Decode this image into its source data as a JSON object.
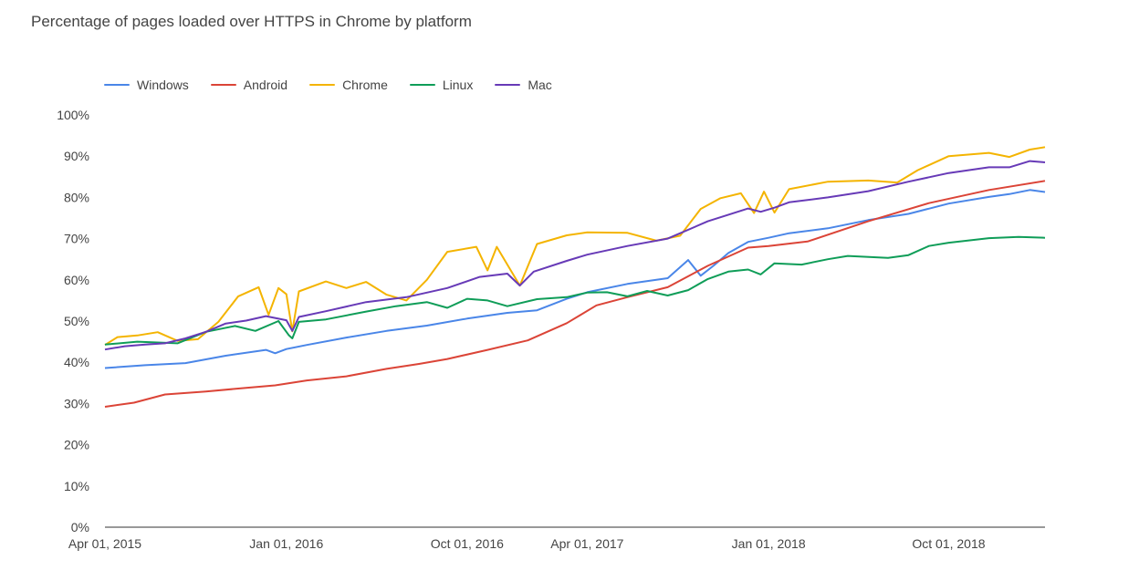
{
  "chart_data": {
    "type": "line",
    "title": "Percentage of pages loaded over HTTPS in Chrome by platform",
    "xlabel": "",
    "ylabel": "",
    "x_range": [
      "2015-04-01",
      "2019-02-24"
    ],
    "ylim": [
      0,
      100
    ],
    "y_ticks": [
      "0%",
      "10%",
      "20%",
      "30%",
      "40%",
      "50%",
      "60%",
      "70%",
      "80%",
      "90%",
      "100%"
    ],
    "y_tick_values": [
      0,
      10,
      20,
      30,
      40,
      50,
      60,
      70,
      80,
      90,
      100
    ],
    "x_ticks": [
      {
        "label": "Apr 01, 2015",
        "date": "2015-04-01"
      },
      {
        "label": "Jan 01, 2016",
        "date": "2016-01-01"
      },
      {
        "label": "Oct 01, 2016",
        "date": "2016-10-01"
      },
      {
        "label": "Apr 01, 2017",
        "date": "2017-04-01"
      },
      {
        "label": "Jan 01, 2018",
        "date": "2018-01-01"
      },
      {
        "label": "Oct 01, 2018",
        "date": "2018-10-01"
      }
    ],
    "grid": false,
    "legend_position": "top-left",
    "series": [
      {
        "name": "Windows",
        "color": "#4a86e8",
        "points": [
          [
            "2015-04-01",
            38.6
          ],
          [
            "2015-06-01",
            39.3
          ],
          [
            "2015-08-01",
            39.8
          ],
          [
            "2015-10-01",
            41.6
          ],
          [
            "2015-12-01",
            43.0
          ],
          [
            "2015-12-15",
            42.2
          ],
          [
            "2016-01-01",
            43.2
          ],
          [
            "2016-02-01",
            44.2
          ],
          [
            "2016-04-01",
            46.0
          ],
          [
            "2016-06-01",
            47.6
          ],
          [
            "2016-08-01",
            48.9
          ],
          [
            "2016-10-01",
            50.6
          ],
          [
            "2016-12-01",
            52.0
          ],
          [
            "2017-01-15",
            52.6
          ],
          [
            "2017-03-01",
            55.4
          ],
          [
            "2017-04-01",
            57.0
          ],
          [
            "2017-06-01",
            59.0
          ],
          [
            "2017-08-01",
            60.4
          ],
          [
            "2017-09-01",
            64.8
          ],
          [
            "2017-09-20",
            61.0
          ],
          [
            "2017-10-10",
            63.5
          ],
          [
            "2017-11-01",
            66.5
          ],
          [
            "2017-12-01",
            69.2
          ],
          [
            "2018-01-01",
            70.2
          ],
          [
            "2018-02-01",
            71.3
          ],
          [
            "2018-04-01",
            72.5
          ],
          [
            "2018-06-01",
            74.5
          ],
          [
            "2018-08-01",
            76.0
          ],
          [
            "2018-10-01",
            78.5
          ],
          [
            "2018-12-01",
            80.1
          ],
          [
            "2019-01-01",
            80.8
          ],
          [
            "2019-02-01",
            81.8
          ],
          [
            "2019-02-24",
            81.3
          ]
        ]
      },
      {
        "name": "Android",
        "color": "#db4437",
        "points": [
          [
            "2015-04-01",
            29.2
          ],
          [
            "2015-05-15",
            30.2
          ],
          [
            "2015-07-01",
            32.2
          ],
          [
            "2015-09-01",
            32.9
          ],
          [
            "2015-11-01",
            33.8
          ],
          [
            "2015-12-15",
            34.4
          ],
          [
            "2016-02-01",
            35.6
          ],
          [
            "2016-04-01",
            36.6
          ],
          [
            "2016-06-01",
            38.4
          ],
          [
            "2016-07-20",
            39.6
          ],
          [
            "2016-09-01",
            40.8
          ],
          [
            "2016-11-01",
            43.0
          ],
          [
            "2017-01-01",
            45.3
          ],
          [
            "2017-03-01",
            49.5
          ],
          [
            "2017-04-15",
            53.8
          ],
          [
            "2017-06-01",
            55.8
          ],
          [
            "2017-08-01",
            58.2
          ],
          [
            "2017-10-01",
            63.4
          ],
          [
            "2017-12-01",
            67.8
          ],
          [
            "2018-01-01",
            68.2
          ],
          [
            "2018-03-01",
            69.3
          ],
          [
            "2018-06-01",
            74.2
          ],
          [
            "2018-09-01",
            78.6
          ],
          [
            "2018-12-01",
            81.8
          ],
          [
            "2019-02-24",
            84.0
          ]
        ]
      },
      {
        "name": "Chrome",
        "color": "#f4b400",
        "points": [
          [
            "2015-04-01",
            44.2
          ],
          [
            "2015-04-20",
            46.1
          ],
          [
            "2015-05-20",
            46.5
          ],
          [
            "2015-06-20",
            47.3
          ],
          [
            "2015-07-20",
            45.2
          ],
          [
            "2015-08-20",
            45.6
          ],
          [
            "2015-09-20",
            49.8
          ],
          [
            "2015-10-20",
            56.0
          ],
          [
            "2015-11-20",
            58.2
          ],
          [
            "2015-12-05",
            51.5
          ],
          [
            "2015-12-20",
            58.0
          ],
          [
            "2016-01-01",
            56.5
          ],
          [
            "2016-01-10",
            47.5
          ],
          [
            "2016-01-20",
            57.2
          ],
          [
            "2016-03-01",
            59.6
          ],
          [
            "2016-04-01",
            58.0
          ],
          [
            "2016-05-01",
            59.5
          ],
          [
            "2016-06-01",
            56.4
          ],
          [
            "2016-07-01",
            55.0
          ],
          [
            "2016-08-01",
            60.0
          ],
          [
            "2016-09-01",
            66.8
          ],
          [
            "2016-10-15",
            68.0
          ],
          [
            "2016-11-01",
            62.3
          ],
          [
            "2016-11-15",
            68.0
          ],
          [
            "2016-12-20",
            58.6
          ],
          [
            "2017-01-15",
            68.7
          ],
          [
            "2017-03-01",
            70.8
          ],
          [
            "2017-04-01",
            71.5
          ],
          [
            "2017-06-01",
            71.4
          ],
          [
            "2017-07-15",
            69.5
          ],
          [
            "2017-08-20",
            70.7
          ],
          [
            "2017-09-20",
            77.2
          ],
          [
            "2017-10-20",
            79.8
          ],
          [
            "2017-11-20",
            81.0
          ],
          [
            "2017-12-10",
            76.2
          ],
          [
            "2017-12-25",
            81.4
          ],
          [
            "2018-01-10",
            76.3
          ],
          [
            "2018-02-01",
            82.0
          ],
          [
            "2018-04-01",
            83.8
          ],
          [
            "2018-06-01",
            84.1
          ],
          [
            "2018-07-15",
            83.6
          ],
          [
            "2018-08-15",
            86.6
          ],
          [
            "2018-10-01",
            90.0
          ],
          [
            "2018-12-01",
            90.8
          ],
          [
            "2019-01-01",
            89.8
          ],
          [
            "2019-02-01",
            91.6
          ],
          [
            "2019-02-24",
            92.2
          ]
        ]
      },
      {
        "name": "Linux",
        "color": "#0f9d58",
        "points": [
          [
            "2015-04-01",
            44.3
          ],
          [
            "2015-05-20",
            45.0
          ],
          [
            "2015-07-20",
            44.6
          ],
          [
            "2015-09-01",
            47.4
          ],
          [
            "2015-10-15",
            48.8
          ],
          [
            "2015-11-15",
            47.6
          ],
          [
            "2015-12-20",
            50.0
          ],
          [
            "2016-01-05",
            46.5
          ],
          [
            "2016-01-10",
            45.8
          ],
          [
            "2016-01-20",
            49.8
          ],
          [
            "2016-03-01",
            50.4
          ],
          [
            "2016-05-01",
            52.3
          ],
          [
            "2016-06-15",
            53.6
          ],
          [
            "2016-08-01",
            54.6
          ],
          [
            "2016-09-01",
            53.2
          ],
          [
            "2016-10-01",
            55.4
          ],
          [
            "2016-11-01",
            55.0
          ],
          [
            "2016-12-01",
            53.6
          ],
          [
            "2017-01-15",
            55.3
          ],
          [
            "2017-03-01",
            55.8
          ],
          [
            "2017-04-01",
            56.9
          ],
          [
            "2017-05-01",
            57.0
          ],
          [
            "2017-06-01",
            56.0
          ],
          [
            "2017-07-01",
            57.3
          ],
          [
            "2017-08-01",
            56.2
          ],
          [
            "2017-09-01",
            57.5
          ],
          [
            "2017-10-01",
            60.2
          ],
          [
            "2017-11-01",
            62.0
          ],
          [
            "2017-12-01",
            62.5
          ],
          [
            "2017-12-20",
            61.3
          ],
          [
            "2018-01-10",
            64.0
          ],
          [
            "2018-02-20",
            63.7
          ],
          [
            "2018-04-01",
            65.0
          ],
          [
            "2018-05-01",
            65.8
          ],
          [
            "2018-07-01",
            65.3
          ],
          [
            "2018-08-01",
            66.0
          ],
          [
            "2018-09-01",
            68.2
          ],
          [
            "2018-10-01",
            69.0
          ],
          [
            "2018-12-01",
            70.1
          ],
          [
            "2019-01-15",
            70.4
          ],
          [
            "2019-02-24",
            70.2
          ]
        ]
      },
      {
        "name": "Mac",
        "color": "#673ab7",
        "points": [
          [
            "2015-04-01",
            43.1
          ],
          [
            "2015-05-01",
            43.9
          ],
          [
            "2015-06-01",
            44.3
          ],
          [
            "2015-07-01",
            44.6
          ],
          [
            "2015-08-01",
            45.8
          ],
          [
            "2015-09-01",
            47.4
          ],
          [
            "2015-10-01",
            49.4
          ],
          [
            "2015-11-01",
            50.1
          ],
          [
            "2015-12-01",
            51.2
          ],
          [
            "2016-01-01",
            50.2
          ],
          [
            "2016-01-10",
            47.6
          ],
          [
            "2016-01-20",
            51.0
          ],
          [
            "2016-03-01",
            52.4
          ],
          [
            "2016-05-01",
            54.6
          ],
          [
            "2016-07-01",
            55.8
          ],
          [
            "2016-09-01",
            58.0
          ],
          [
            "2016-10-20",
            60.7
          ],
          [
            "2016-12-01",
            61.5
          ],
          [
            "2016-12-20",
            58.6
          ],
          [
            "2017-01-10",
            62.0
          ],
          [
            "2017-03-01",
            64.6
          ],
          [
            "2017-04-01",
            66.1
          ],
          [
            "2017-06-01",
            68.2
          ],
          [
            "2017-08-01",
            70.0
          ],
          [
            "2017-10-01",
            74.2
          ],
          [
            "2017-11-01",
            75.8
          ],
          [
            "2017-12-01",
            77.3
          ],
          [
            "2017-12-20",
            76.5
          ],
          [
            "2018-01-10",
            77.5
          ],
          [
            "2018-02-01",
            78.8
          ],
          [
            "2018-04-01",
            80.0
          ],
          [
            "2018-06-01",
            81.5
          ],
          [
            "2018-08-01",
            83.8
          ],
          [
            "2018-10-01",
            85.9
          ],
          [
            "2018-12-01",
            87.3
          ],
          [
            "2019-01-01",
            87.3
          ],
          [
            "2019-02-01",
            88.8
          ],
          [
            "2019-02-24",
            88.5
          ]
        ]
      }
    ]
  }
}
